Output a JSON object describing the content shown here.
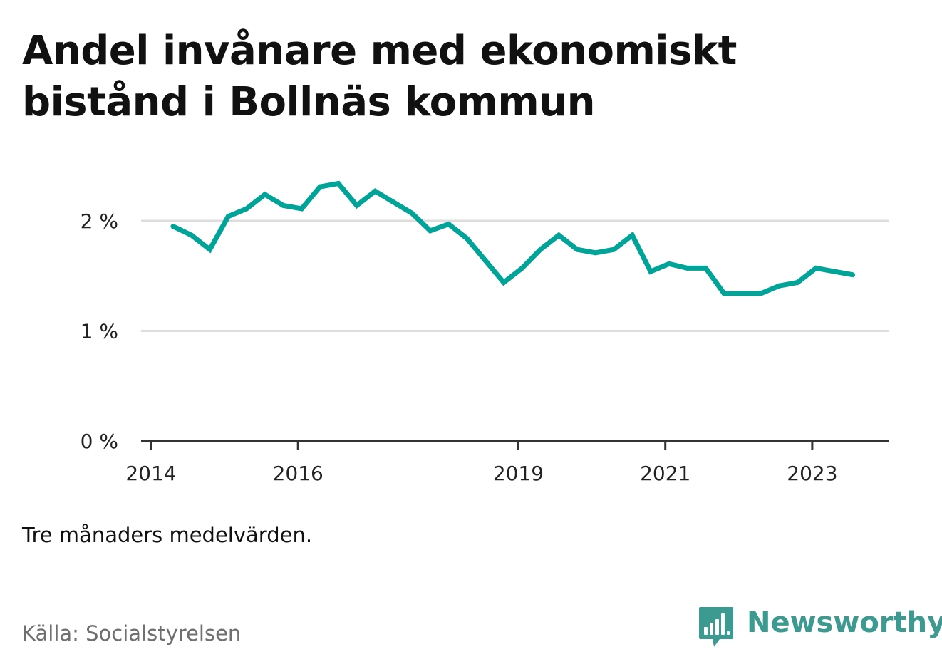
{
  "title": "Andel invånare med ekonomiskt bistånd i Bollnäs kommun",
  "note": "Tre månaders medelvärden.",
  "source": "Källa: Socialstyrelsen",
  "logo": {
    "text": "Newsworthy",
    "icon": "newsworthy-bar-chart-icon",
    "color": "#3d9a90"
  },
  "chart_data": {
    "type": "line",
    "title": "Andel invånare med ekonomiskt bistånd i Bollnäs kommun",
    "xlabel": "",
    "ylabel": "",
    "ylim": [
      0,
      2.5
    ],
    "y_ticks": [
      0,
      1,
      2
    ],
    "y_tick_labels": [
      "0 %",
      "1 %",
      "2 %"
    ],
    "x_ticks": [
      2014,
      2016,
      2019,
      2021,
      2023
    ],
    "x_tick_labels": [
      "2014",
      "2016",
      "2019",
      "2021",
      "2023"
    ],
    "grid": true,
    "line_color": "#00a398",
    "series": [
      {
        "x": [
          2014.3,
          2014.55,
          2014.8,
          2015.05,
          2015.3,
          2015.55,
          2015.8,
          2016.05,
          2016.3,
          2016.55,
          2016.8,
          2017.05,
          2017.3,
          2017.55,
          2017.8,
          2018.05,
          2018.3,
          2018.55,
          2018.8,
          2019.05,
          2019.3,
          2019.55,
          2019.8,
          2020.05,
          2020.3,
          2020.55,
          2020.8,
          2021.05,
          2021.3,
          2021.55,
          2021.8,
          2022.05,
          2022.3,
          2022.55,
          2022.8,
          2023.05,
          2023.3,
          2023.55
        ],
        "values": [
          1.95,
          1.87,
          1.74,
          2.04,
          2.11,
          2.24,
          2.14,
          2.11,
          2.31,
          2.34,
          2.14,
          2.27,
          2.17,
          2.07,
          1.91,
          1.97,
          1.84,
          1.64,
          1.44,
          1.57,
          1.74,
          1.87,
          1.74,
          1.71,
          1.74,
          1.87,
          1.54,
          1.61,
          1.57,
          1.57,
          1.34,
          1.34,
          1.34,
          1.41,
          1.44,
          1.57,
          1.54,
          1.51
        ]
      }
    ]
  }
}
